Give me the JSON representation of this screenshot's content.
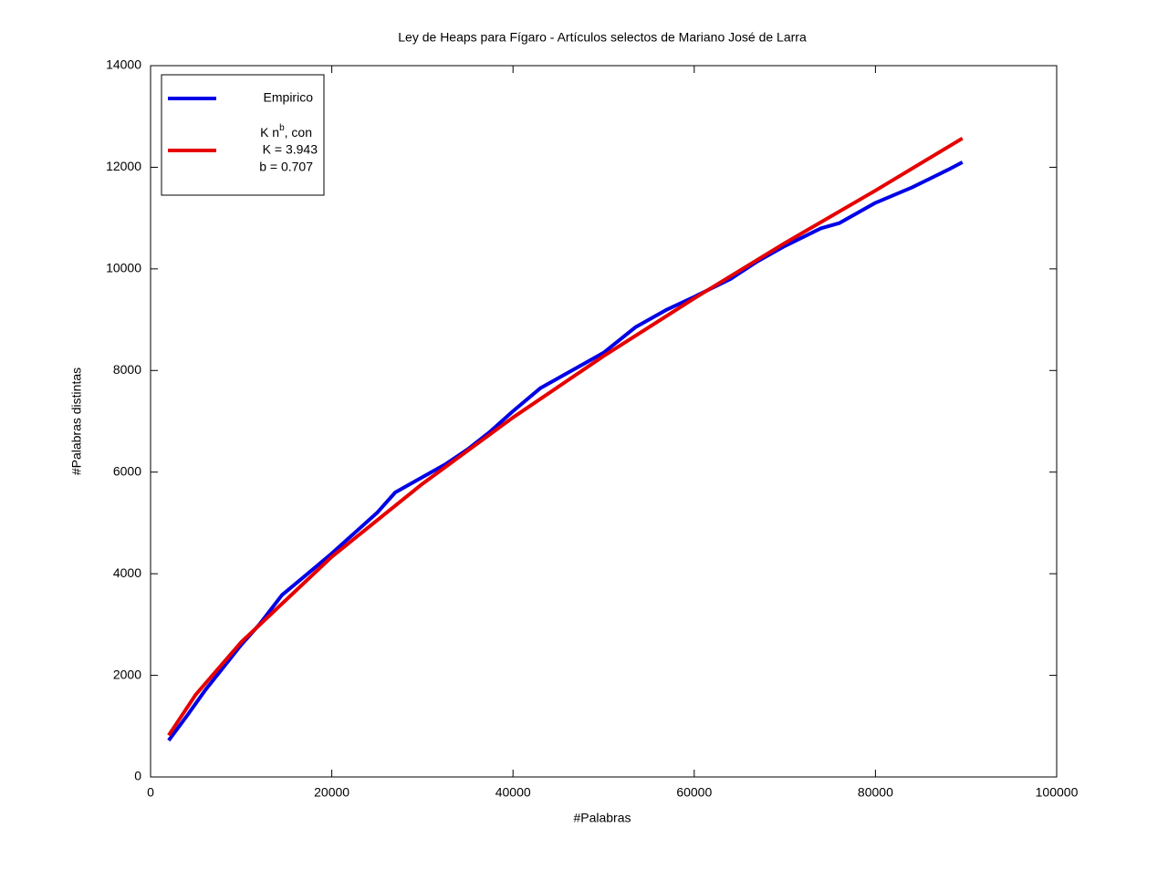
{
  "chart_data": {
    "type": "line",
    "title": "Ley de Heaps para Fígaro - Artículos selectos de Mariano José de Larra",
    "x_label": "#Palabras",
    "y_label": "#Palabras distintas",
    "xlim": [
      0,
      100000
    ],
    "xticks": [
      0,
      20000,
      40000,
      60000,
      80000,
      100000
    ],
    "ylim": [
      0,
      14000
    ],
    "yticks": [
      0,
      2000,
      4000,
      6000,
      8000,
      10000,
      12000,
      14000
    ],
    "grid": false,
    "legend": "upper left",
    "series": [
      {
        "name": [
          "Empirico"
        ],
        "color": "#0000e6",
        "x": [
          2000,
          4000,
          6000,
          8000,
          10000,
          12000,
          14500,
          17000,
          20000,
          22500,
          25000,
          27000,
          30000,
          32500,
          35000,
          37500,
          40000,
          43000,
          47000,
          50000,
          53500,
          57000,
          60000,
          64000,
          67000,
          70000,
          74000,
          76000,
          80000,
          84000,
          88000,
          89600
        ],
        "values": [
          720,
          1200,
          1700,
          2150,
          2600,
          3000,
          3580,
          3950,
          4400,
          4800,
          5200,
          5600,
          5900,
          6150,
          6450,
          6800,
          7200,
          7650,
          8050,
          8350,
          8850,
          9200,
          9450,
          9800,
          10150,
          10450,
          10800,
          10900,
          11300,
          11600,
          11950,
          12100
        ]
      },
      {
        "name": [
          "K n",
          "b",
          ", con",
          "K = 3.943",
          "b = 0.707"
        ],
        "color": "#e60000",
        "x": [
          2000,
          5000,
          10000,
          20000,
          30000,
          40000,
          50000,
          60000,
          70000,
          80000,
          89600
        ],
        "values": [
          820,
          1624,
          2652,
          4333,
          5769,
          7075,
          8284,
          9420,
          10508,
          11542,
          12570
        ]
      }
    ]
  }
}
